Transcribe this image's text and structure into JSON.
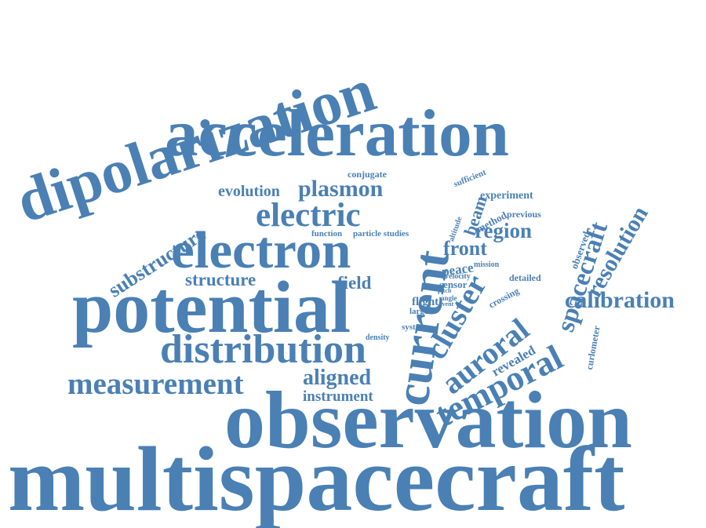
{
  "color": "#4a80b4",
  "words": [
    {
      "text": "dipolarization"
    },
    {
      "text": "acceleration"
    },
    {
      "text": "current"
    },
    {
      "text": "conjugate"
    },
    {
      "text": "sufficient"
    },
    {
      "text": "substructure"
    },
    {
      "text": "evolution"
    },
    {
      "text": "plasmon"
    },
    {
      "text": "spacecraft"
    },
    {
      "text": "beam"
    },
    {
      "text": "experiment"
    },
    {
      "text": "altitude"
    },
    {
      "text": "method"
    },
    {
      "text": "previous"
    },
    {
      "text": "observed"
    },
    {
      "text": "resolution"
    },
    {
      "text": "electric"
    },
    {
      "text": "region"
    },
    {
      "text": "function"
    },
    {
      "text": "particle studies"
    },
    {
      "text": "front"
    },
    {
      "text": "electron"
    },
    {
      "text": "peace"
    },
    {
      "text": "mission"
    },
    {
      "text": "sensor"
    },
    {
      "text": "velocity"
    },
    {
      "text": "detailed"
    },
    {
      "text": "structure"
    },
    {
      "text": "field"
    },
    {
      "text": "cluster"
    },
    {
      "text": "crossing"
    },
    {
      "text": "calibration"
    },
    {
      "text": "flight"
    },
    {
      "text": "angle"
    },
    {
      "text": "pitch"
    },
    {
      "text": "event"
    },
    {
      "text": "larger"
    },
    {
      "text": "potential"
    },
    {
      "text": "auroral"
    },
    {
      "text": "system"
    },
    {
      "text": "curlometer"
    },
    {
      "text": "density"
    },
    {
      "text": "revealed"
    },
    {
      "text": "distribution"
    },
    {
      "text": "temporal"
    },
    {
      "text": "measurement"
    },
    {
      "text": "aligned"
    },
    {
      "text": "instrument"
    },
    {
      "text": "observation"
    },
    {
      "text": "multispacecraft"
    }
  ]
}
